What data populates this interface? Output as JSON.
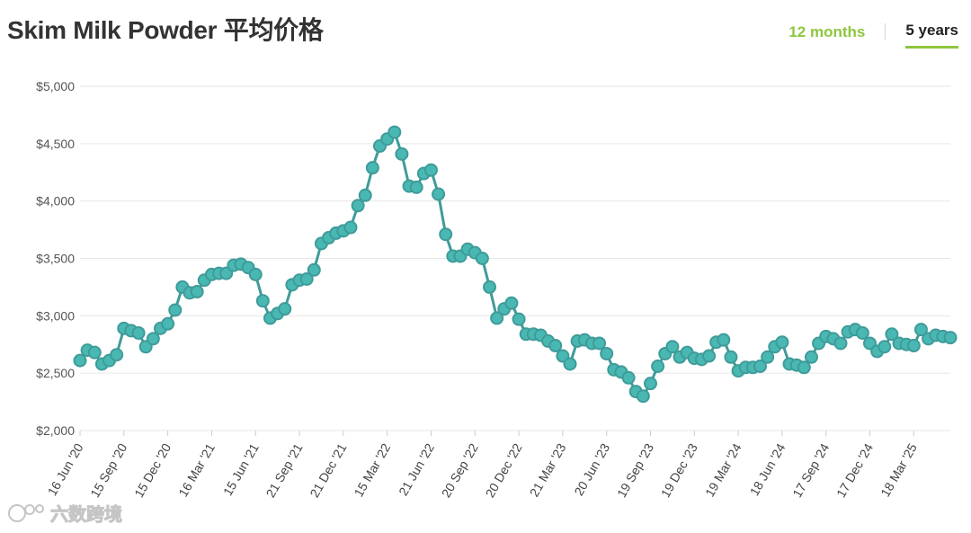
{
  "header": {
    "title": "Skim Milk Powder 平均价格"
  },
  "range_tabs": [
    {
      "label": "12 months",
      "active": false
    },
    {
      "label": "5 years",
      "active": true
    }
  ],
  "colors": {
    "line": "#3f9b99",
    "marker_fill": "#49b8b3",
    "accent": "#8dc63f",
    "grid": "#e6e6e6"
  },
  "watermark": {
    "text": "六数跨境"
  },
  "chart_data": {
    "type": "line",
    "title": "Skim Milk Powder 平均价格",
    "xlabel": "",
    "ylabel": "",
    "ylim": [
      2000,
      5000
    ],
    "yticks": [
      2000,
      2500,
      3000,
      3500,
      4000,
      4500,
      5000
    ],
    "ytick_labels": [
      "$2,000",
      "$2,500",
      "$3,000",
      "$3,500",
      "$4,000",
      "$4,500",
      "$5,000"
    ],
    "grid": true,
    "xtick_labels": [
      "16 Jun '20",
      "15 Sep '20",
      "15 Dec '20",
      "16 Mar '21",
      "15 Jun '21",
      "21 Sep '21",
      "21 Dec '21",
      "15 Mar '22",
      "21 Jun '22",
      "20 Sep '22",
      "20 Dec '22",
      "21 Mar '23",
      "20 Jun '23",
      "19 Sep '23",
      "19 Dec '23",
      "19 Mar '24",
      "18 Jun '24",
      "17 Sep '24",
      "17 Dec '24",
      "18 Mar '25"
    ],
    "xtick_event_index": [
      0,
      6,
      12,
      18,
      24,
      30,
      36,
      42,
      48,
      54,
      60,
      66,
      72,
      78,
      84,
      90,
      96,
      102,
      108,
      114
    ],
    "series": [
      {
        "values": [
          2610,
          2700,
          2680,
          2580,
          2610,
          2660,
          2890,
          2870,
          2850,
          2730,
          2800,
          2890,
          2930,
          3050,
          3250,
          3200,
          3210,
          3310,
          3360,
          3370,
          3370,
          3440,
          3450,
          3420,
          3360,
          3130,
          2980,
          3020,
          3060,
          3270,
          3310,
          3320,
          3400,
          3630,
          3680,
          3720,
          3740,
          3770,
          3960,
          4050,
          4290,
          4480,
          4540,
          4600,
          4410,
          4130,
          4120,
          4240,
          4270,
          4060,
          3710,
          3520,
          3520,
          3580,
          3550,
          3500,
          3250,
          2980,
          3060,
          3110,
          2970,
          2840,
          2840,
          2830,
          2780,
          2740,
          2650,
          2580,
          2780,
          2790,
          2760,
          2760,
          2670,
          2530,
          2510,
          2460,
          2340,
          2300,
          2410,
          2560,
          2670,
          2730,
          2640,
          2680,
          2630,
          2620,
          2650,
          2770,
          2790,
          2640,
          2520,
          2550,
          2550,
          2560,
          2640,
          2730,
          2770,
          2580,
          2570,
          2550,
          2640,
          2760,
          2820,
          2800,
          2760,
          2860,
          2880,
          2850,
          2760,
          2690,
          2730,
          2840,
          2760,
          2750,
          2740,
          2880,
          2800,
          2830,
          2820,
          2810
        ]
      }
    ]
  }
}
